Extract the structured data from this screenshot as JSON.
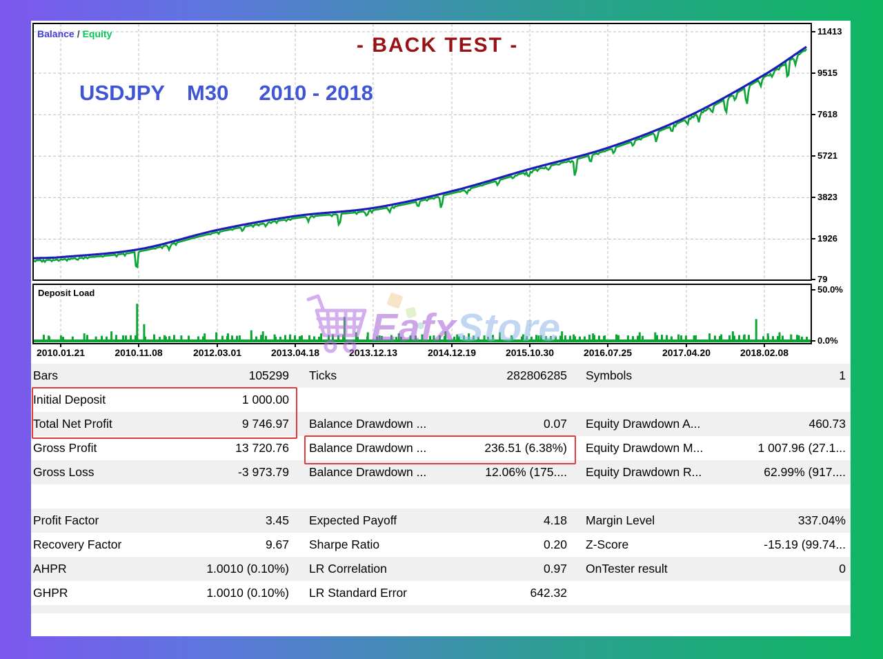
{
  "chart": {
    "legend": {
      "balance": "Balance",
      "sep": "/",
      "equity": "Equity"
    },
    "title": "- BACK TEST -",
    "subtitle": {
      "symbol": "USDJPY",
      "timeframe": "M30",
      "period": "2010 - 2018"
    },
    "colors": {
      "balance_line": "#1c1cb8",
      "equity_line": "#0aa532",
      "grid": "#bdbdbd",
      "title": "#981114",
      "subtitle": "#3f55d4"
    }
  },
  "chart_data": {
    "type": "line",
    "title": "- BACK TEST -",
    "symbol": "USDJPY",
    "timeframe": "M30",
    "period": "2010 - 2018",
    "ylim": [
      79,
      11413
    ],
    "grid": "dashed",
    "legend_position": "top-left",
    "y_ticks": [
      11413,
      9515,
      7618,
      5721,
      3823,
      1926,
      79
    ],
    "x_ticks": [
      {
        "label": "2010.01.21",
        "f": 0.0346
      },
      {
        "label": "2010.11.08",
        "f": 0.135
      },
      {
        "label": "2012.03.01",
        "f": 0.2363
      },
      {
        "label": "2013.04.18",
        "f": 0.3366
      },
      {
        "label": "2013.12.13",
        "f": 0.4369
      },
      {
        "label": "2014.12.19",
        "f": 0.5382
      },
      {
        "label": "2015.10.30",
        "f": 0.6385
      },
      {
        "label": "2016.07.25",
        "f": 0.7389
      },
      {
        "label": "2017.04.20",
        "f": 0.8401
      },
      {
        "label": "2018.02.08",
        "f": 0.9405
      }
    ],
    "series": [
      {
        "name": "Balance",
        "color": "#1c1cb8",
        "points": [
          [
            0,
            1050
          ],
          [
            0.035,
            1100
          ],
          [
            0.136,
            1460
          ],
          [
            0.237,
            2340
          ],
          [
            0.338,
            2980
          ],
          [
            0.439,
            3350
          ],
          [
            0.541,
            4120
          ],
          [
            0.641,
            5130
          ],
          [
            0.742,
            6100
          ],
          [
            0.844,
            7510
          ],
          [
            0.945,
            9450
          ],
          [
            1.0,
            10745
          ]
        ]
      },
      {
        "name": "Equity",
        "color": "#0aa532",
        "gap_below_balance": 100,
        "drawdown_spikes": [
          [
            0.133,
            1000
          ],
          [
            0.175,
            250
          ],
          [
            0.27,
            220
          ],
          [
            0.3,
            180
          ],
          [
            0.355,
            200
          ],
          [
            0.395,
            650
          ],
          [
            0.43,
            200
          ],
          [
            0.46,
            250
          ],
          [
            0.497,
            300
          ],
          [
            0.527,
            620
          ],
          [
            0.56,
            200
          ],
          [
            0.6,
            250
          ],
          [
            0.64,
            280
          ],
          [
            0.665,
            200
          ],
          [
            0.7,
            950
          ],
          [
            0.72,
            400
          ],
          [
            0.75,
            300
          ],
          [
            0.775,
            260
          ],
          [
            0.805,
            500
          ],
          [
            0.825,
            300
          ],
          [
            0.845,
            250
          ],
          [
            0.86,
            420
          ],
          [
            0.877,
            300
          ],
          [
            0.895,
            800
          ],
          [
            0.907,
            350
          ],
          [
            0.922,
            900
          ],
          [
            0.94,
            350
          ],
          [
            0.955,
            250
          ],
          [
            0.975,
            950
          ],
          [
            0.985,
            400
          ]
        ]
      }
    ]
  },
  "deposit": {
    "label": "Deposit Load",
    "y_max_label": "50.0%",
    "y_min_label": "0.0%",
    "bar_color": "#0aa532",
    "bars": [
      [
        0.02,
        3
      ],
      [
        0.035,
        4
      ],
      [
        0.05,
        3
      ],
      [
        0.065,
        6
      ],
      [
        0.08,
        3
      ],
      [
        0.1,
        8
      ],
      [
        0.115,
        4
      ],
      [
        0.133,
        35
      ],
      [
        0.142,
        15
      ],
      [
        0.155,
        5
      ],
      [
        0.17,
        3
      ],
      [
        0.19,
        4
      ],
      [
        0.22,
        6
      ],
      [
        0.235,
        7
      ],
      [
        0.25,
        6
      ],
      [
        0.265,
        4
      ],
      [
        0.28,
        9
      ],
      [
        0.295,
        8
      ],
      [
        0.31,
        5
      ],
      [
        0.33,
        5
      ],
      [
        0.345,
        4
      ],
      [
        0.37,
        6
      ],
      [
        0.385,
        5
      ],
      [
        0.4,
        22
      ],
      [
        0.415,
        7
      ],
      [
        0.43,
        7
      ],
      [
        0.445,
        4
      ],
      [
        0.47,
        6
      ],
      [
        0.485,
        4
      ],
      [
        0.5,
        5
      ],
      [
        0.515,
        4
      ],
      [
        0.53,
        8
      ],
      [
        0.545,
        5
      ],
      [
        0.56,
        6
      ],
      [
        0.58,
        4
      ],
      [
        0.6,
        7
      ],
      [
        0.615,
        4
      ],
      [
        0.63,
        5
      ],
      [
        0.65,
        4
      ],
      [
        0.68,
        8
      ],
      [
        0.695,
        5
      ],
      [
        0.72,
        6
      ],
      [
        0.735,
        4
      ],
      [
        0.75,
        5
      ],
      [
        0.765,
        4
      ],
      [
        0.78,
        7
      ],
      [
        0.8,
        7
      ],
      [
        0.815,
        4
      ],
      [
        0.83,
        5
      ],
      [
        0.85,
        4
      ],
      [
        0.87,
        6
      ],
      [
        0.885,
        5
      ],
      [
        0.9,
        8
      ],
      [
        0.915,
        5
      ],
      [
        0.93,
        20
      ],
      [
        0.945,
        6
      ],
      [
        0.96,
        7
      ],
      [
        0.975,
        5
      ],
      [
        0.985,
        4
      ]
    ]
  },
  "watermark": {
    "brand_primary": "Eafx",
    "brand_secondary": "Store"
  },
  "stats": {
    "rows": [
      {
        "cells": [
          [
            "Bars",
            "105299"
          ],
          [
            "Ticks",
            "282806285"
          ],
          [
            "Symbols",
            "1"
          ]
        ]
      },
      {
        "cells": [
          [
            "Initial Deposit",
            "1 000.00"
          ],
          [
            "",
            ""
          ],
          [
            "",
            ""
          ]
        ]
      },
      {
        "cells": [
          [
            "Total Net Profit",
            "9 746.97"
          ],
          [
            "Balance Drawdown ...",
            "0.07"
          ],
          [
            "Equity Drawdown A...",
            "460.73"
          ]
        ]
      },
      {
        "cells": [
          [
            "Gross Profit",
            "13 720.76"
          ],
          [
            "Balance Drawdown ...",
            "236.51 (6.38%)"
          ],
          [
            "Equity Drawdown M...",
            "1 007.96 (27.1..."
          ]
        ]
      },
      {
        "cells": [
          [
            "Gross Loss",
            "-3 973.79"
          ],
          [
            "Balance Drawdown ...",
            "12.06% (175...."
          ],
          [
            "Equity Drawdown R...",
            "62.99% (917...."
          ]
        ]
      },
      {
        "cells": [
          [
            "",
            ""
          ],
          [
            "",
            ""
          ],
          [
            "",
            ""
          ]
        ]
      },
      {
        "cells": [
          [
            "Profit Factor",
            "3.45"
          ],
          [
            "Expected Payoff",
            "4.18"
          ],
          [
            "Margin Level",
            "337.04%"
          ]
        ]
      },
      {
        "cells": [
          [
            "Recovery Factor",
            "9.67"
          ],
          [
            "Sharpe Ratio",
            "0.20"
          ],
          [
            "Z-Score",
            "-15.19 (99.74..."
          ]
        ]
      },
      {
        "cells": [
          [
            "AHPR",
            "1.0010 (0.10%)"
          ],
          [
            "LR Correlation",
            "0.97"
          ],
          [
            "OnTester result",
            "0"
          ]
        ]
      },
      {
        "cells": [
          [
            "GHPR",
            "1.0010 (0.10%)"
          ],
          [
            "LR Standard Error",
            "642.32"
          ],
          [
            "",
            ""
          ]
        ]
      }
    ]
  }
}
